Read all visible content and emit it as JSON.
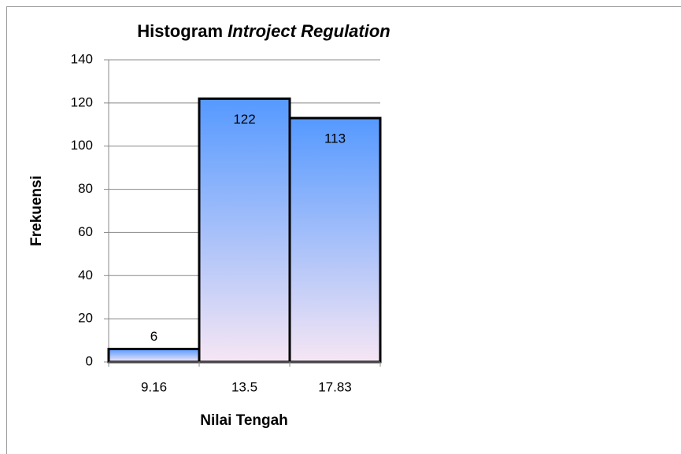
{
  "chart_data": {
    "type": "bar",
    "title": [
      "Histogram",
      "Introject Regulation"
    ],
    "categories": [
      "9.16",
      "13.5",
      "17.83"
    ],
    "values": [
      6,
      122,
      113
    ],
    "x_label": "Nilai Tengah",
    "y_label": "Frekuensi",
    "color": [
      "#5599ff",
      "#f6e6f4"
    ],
    "ylim": [
      0,
      140
    ],
    "yticks": [
      0,
      20,
      40,
      60,
      80,
      100,
      120,
      140
    ],
    "grid": true
  }
}
